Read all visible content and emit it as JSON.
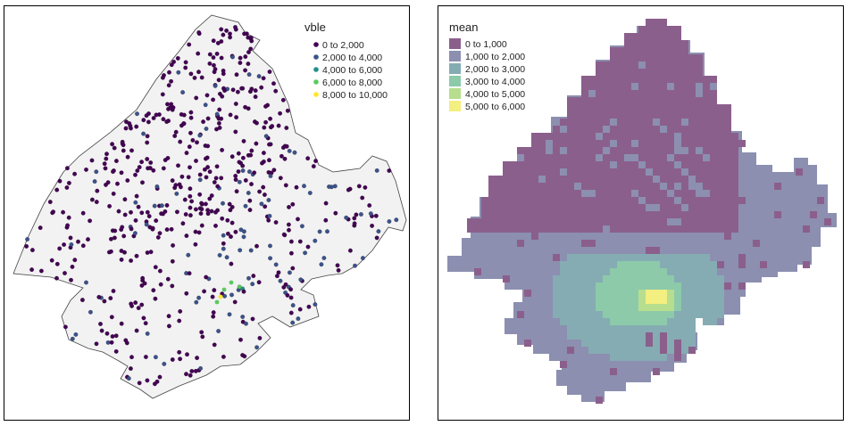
{
  "left_map": {
    "legend_title": "vble",
    "legend_items": [
      {
        "label": "0 to 2,000",
        "color": "#440154"
      },
      {
        "label": "2,000 to 4,000",
        "color": "#3b528b"
      },
      {
        "label": "4,000 to 6,000",
        "color": "#21908c"
      },
      {
        "label": "6,000 to 8,000",
        "color": "#5dc863"
      },
      {
        "label": "8,000 to 10,000",
        "color": "#fde725"
      }
    ],
    "background_color": "#f2f2f2"
  },
  "right_map": {
    "legend_title": "mean",
    "legend_items": [
      {
        "label": "0 to 1,000",
        "color": "#8b5f8c"
      },
      {
        "label": "1,000 to 2,000",
        "color": "#8c8fb0"
      },
      {
        "label": "2,000 to 3,000",
        "color": "#85acb3"
      },
      {
        "label": "3,000 to 4,000",
        "color": "#8ccaaa"
      },
      {
        "label": "4,000 to 5,000",
        "color": "#b7dd8e"
      },
      {
        "label": "5,000 to 6,000",
        "color": "#f3ef80"
      }
    ]
  }
}
